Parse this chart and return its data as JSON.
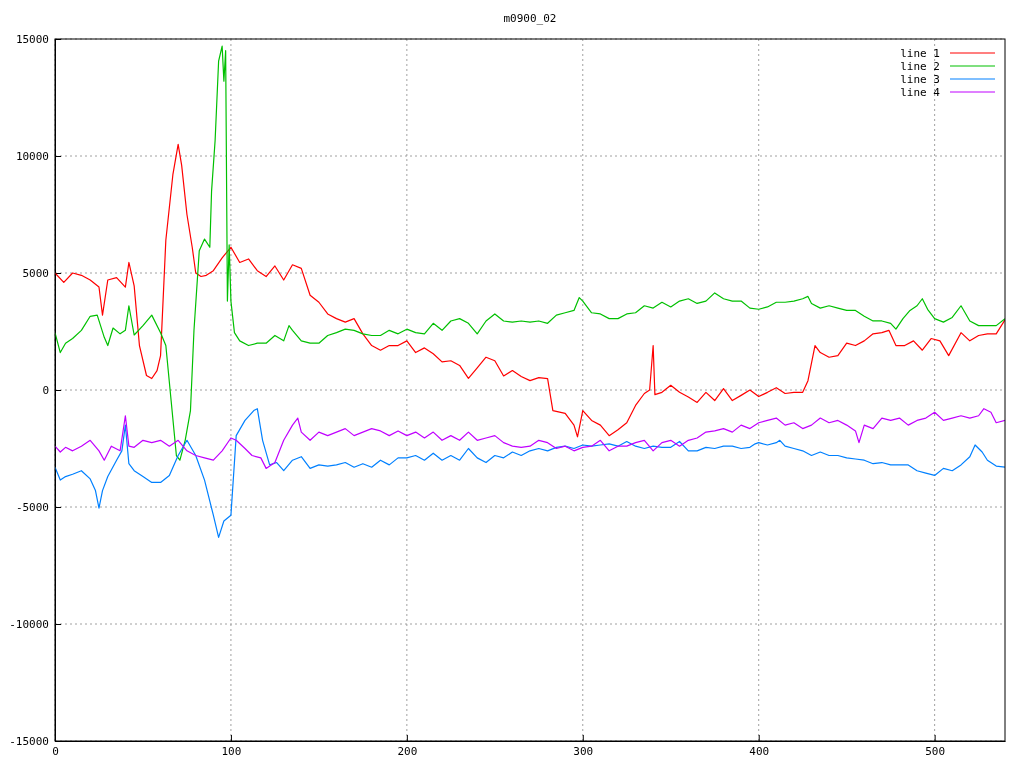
{
  "chart_data": {
    "type": "line",
    "title": "m0900_02",
    "xlim": [
      0,
      540
    ],
    "ylim": [
      -15000,
      15000
    ],
    "xticks": [
      0,
      100,
      200,
      300,
      400,
      500
    ],
    "yticks": [
      -15000,
      -10000,
      -5000,
      0,
      5000,
      10000,
      15000
    ],
    "grid": true,
    "legend": "top right",
    "line_style": "solid",
    "marker": "none",
    "series": [
      {
        "name": "line 1",
        "color": "#ff0000",
        "x": [
          0,
          5,
          10,
          15,
          20,
          25,
          27,
          30,
          35,
          40,
          42,
          45,
          48,
          52,
          55,
          58,
          60,
          63,
          67,
          70,
          72,
          75,
          78,
          80,
          83,
          86,
          90,
          95,
          100,
          105,
          110,
          115,
          120,
          125,
          130,
          135,
          140,
          145,
          150,
          155,
          160,
          165,
          170,
          175,
          180,
          185,
          190,
          195,
          200,
          205,
          210,
          215,
          220,
          225,
          230,
          235,
          240,
          245,
          250,
          255,
          260,
          265,
          270,
          275,
          280,
          283,
          290,
          295,
          297,
          300,
          305,
          310,
          315,
          320,
          325,
          330,
          335,
          338,
          340,
          341,
          345,
          350,
          355,
          360,
          365,
          370,
          375,
          380,
          385,
          390,
          395,
          400,
          405,
          410,
          415,
          420,
          425,
          428,
          432,
          435,
          440,
          445,
          450,
          455,
          460,
          465,
          470,
          474,
          478,
          483,
          488,
          493,
          498,
          503,
          508,
          515,
          520,
          525,
          530,
          535,
          540
        ],
        "values": [
          5000,
          4600,
          5000,
          4900,
          4700,
          4400,
          3200,
          4700,
          4800,
          4400,
          5450,
          4450,
          1900,
          620,
          490,
          830,
          1470,
          6400,
          9200,
          10500,
          9600,
          7500,
          6100,
          5000,
          4850,
          4900,
          5100,
          5650,
          6100,
          5450,
          5600,
          5100,
          4850,
          5300,
          4700,
          5350,
          5200,
          4050,
          3750,
          3250,
          3050,
          2900,
          3050,
          2400,
          1900,
          1700,
          1900,
          1900,
          2100,
          1600,
          1800,
          1550,
          1200,
          1250,
          1050,
          500,
          950,
          1400,
          1250,
          600,
          830,
          580,
          400,
          530,
          490,
          -880,
          -1000,
          -1500,
          -2000,
          -880,
          -1300,
          -1500,
          -1950,
          -1700,
          -1400,
          -660,
          -150,
          0,
          1900,
          -200,
          -100,
          200,
          -100,
          -300,
          -530,
          -100,
          -450,
          60,
          -450,
          -230,
          0,
          -280,
          -100,
          100,
          -150,
          -100,
          -100,
          400,
          1900,
          1600,
          1400,
          1470,
          2000,
          1900,
          2100,
          2400,
          2450,
          2550,
          1900,
          1900,
          2100,
          1700,
          2200,
          2100,
          1470,
          2450,
          2100,
          2330,
          2400,
          2400,
          3000
        ]
      },
      {
        "name": "line 2",
        "color": "#00c000",
        "x": [
          0,
          3,
          6,
          10,
          15,
          20,
          24,
          28,
          30,
          33,
          37,
          40,
          42,
          45,
          50,
          55,
          60,
          63,
          66,
          69,
          71,
          74,
          77,
          79,
          82,
          85,
          88,
          89,
          91,
          93,
          95,
          96,
          97,
          98,
          99,
          100,
          102,
          105,
          110,
          115,
          120,
          125,
          130,
          133,
          135,
          140,
          145,
          150,
          155,
          160,
          165,
          170,
          175,
          180,
          185,
          190,
          195,
          200,
          205,
          210,
          215,
          220,
          225,
          230,
          235,
          240,
          245,
          250,
          255,
          260,
          265,
          270,
          275,
          280,
          285,
          290,
          295,
          298,
          300,
          305,
          310,
          315,
          320,
          325,
          330,
          335,
          340,
          345,
          350,
          355,
          360,
          365,
          370,
          375,
          380,
          385,
          390,
          395,
          400,
          405,
          410,
          415,
          420,
          425,
          428,
          430,
          435,
          440,
          445,
          450,
          455,
          460,
          465,
          470,
          475,
          478,
          482,
          486,
          490,
          493,
          496,
          500,
          505,
          510,
          515,
          520,
          525,
          530,
          535,
          540
        ],
        "values": [
          2450,
          1600,
          2000,
          2200,
          2550,
          3150,
          3200,
          2250,
          1900,
          2650,
          2400,
          2550,
          3600,
          2350,
          2750,
          3200,
          2450,
          1900,
          -450,
          -2800,
          -3000,
          -2150,
          -880,
          2550,
          5950,
          6450,
          6100,
          8500,
          10650,
          14050,
          14700,
          13200,
          14500,
          3800,
          6200,
          3800,
          2450,
          2100,
          1900,
          2000,
          2000,
          2330,
          2100,
          2750,
          2550,
          2100,
          2000,
          2000,
          2330,
          2450,
          2600,
          2550,
          2400,
          2330,
          2330,
          2550,
          2400,
          2600,
          2450,
          2400,
          2850,
          2550,
          2950,
          3050,
          2850,
          2400,
          2950,
          3250,
          2950,
          2900,
          2950,
          2900,
          2950,
          2850,
          3200,
          3300,
          3400,
          3950,
          3800,
          3300,
          3250,
          3050,
          3050,
          3250,
          3300,
          3600,
          3500,
          3750,
          3550,
          3800,
          3900,
          3700,
          3800,
          4150,
          3900,
          3800,
          3800,
          3500,
          3450,
          3550,
          3750,
          3750,
          3800,
          3900,
          4000,
          3700,
          3500,
          3600,
          3500,
          3400,
          3400,
          3150,
          2950,
          2950,
          2850,
          2600,
          3050,
          3400,
          3600,
          3900,
          3450,
          3050,
          2900,
          3100,
          3600,
          2950,
          2750,
          2750,
          2750,
          3050
        ]
      },
      {
        "name": "line 3",
        "color": "#0080ff",
        "x": [
          0,
          3,
          6,
          10,
          15,
          20,
          23,
          25,
          27,
          30,
          35,
          38,
          40,
          42,
          45,
          50,
          55,
          60,
          65,
          70,
          75,
          80,
          85,
          90,
          93,
          96,
          100,
          103,
          108,
          113,
          115,
          118,
          122,
          126,
          130,
          135,
          140,
          145,
          150,
          155,
          160,
          165,
          170,
          175,
          180,
          185,
          190,
          195,
          200,
          205,
          210,
          215,
          220,
          225,
          230,
          235,
          240,
          245,
          250,
          255,
          260,
          265,
          270,
          275,
          280,
          285,
          290,
          295,
          300,
          305,
          310,
          315,
          320,
          325,
          330,
          335,
          340,
          345,
          350,
          355,
          360,
          365,
          370,
          375,
          380,
          385,
          390,
          395,
          398,
          400,
          405,
          410,
          412,
          415,
          420,
          425,
          430,
          435,
          440,
          445,
          450,
          455,
          460,
          465,
          470,
          475,
          480,
          485,
          490,
          495,
          500,
          505,
          510,
          515,
          520,
          523,
          527,
          530,
          535,
          540
        ],
        "values": [
          -3300,
          -3850,
          -3700,
          -3600,
          -3450,
          -3800,
          -4300,
          -5050,
          -4300,
          -3700,
          -3000,
          -2600,
          -1500,
          -3150,
          -3450,
          -3700,
          -3950,
          -3950,
          -3650,
          -2800,
          -2150,
          -2800,
          -3850,
          -5350,
          -6300,
          -5600,
          -5350,
          -1950,
          -1300,
          -880,
          -800,
          -2150,
          -3200,
          -3100,
          -3450,
          -3000,
          -2850,
          -3350,
          -3200,
          -3250,
          -3200,
          -3100,
          -3300,
          -3150,
          -3300,
          -3000,
          -3200,
          -2900,
          -2900,
          -2800,
          -3000,
          -2700,
          -3000,
          -2800,
          -3000,
          -2500,
          -2900,
          -3100,
          -2800,
          -2900,
          -2650,
          -2800,
          -2600,
          -2500,
          -2600,
          -2450,
          -2400,
          -2500,
          -2350,
          -2400,
          -2350,
          -2300,
          -2400,
          -2200,
          -2400,
          -2500,
          -2400,
          -2450,
          -2450,
          -2200,
          -2600,
          -2600,
          -2450,
          -2500,
          -2400,
          -2400,
          -2500,
          -2450,
          -2300,
          -2250,
          -2350,
          -2250,
          -2150,
          -2400,
          -2500,
          -2600,
          -2800,
          -2650,
          -2800,
          -2800,
          -2900,
          -2950,
          -3000,
          -3150,
          -3100,
          -3200,
          -3200,
          -3200,
          -3450,
          -3550,
          -3650,
          -3350,
          -3450,
          -3200,
          -2850,
          -2350,
          -2650,
          -3000,
          -3250,
          -3300
        ]
      },
      {
        "name": "line 4",
        "color": "#c000ff",
        "x": [
          0,
          3,
          6,
          10,
          15,
          20,
          25,
          28,
          32,
          37,
          40,
          42,
          45,
          50,
          55,
          60,
          65,
          70,
          75,
          80,
          85,
          90,
          95,
          100,
          103,
          108,
          112,
          117,
          120,
          125,
          130,
          135,
          138,
          140,
          145,
          150,
          155,
          160,
          165,
          170,
          175,
          180,
          185,
          190,
          195,
          200,
          205,
          210,
          215,
          220,
          225,
          230,
          235,
          240,
          245,
          250,
          255,
          260,
          265,
          270,
          275,
          280,
          285,
          290,
          295,
          300,
          305,
          310,
          315,
          320,
          325,
          330,
          335,
          340,
          345,
          350,
          355,
          360,
          365,
          370,
          375,
          380,
          385,
          390,
          395,
          400,
          405,
          410,
          415,
          420,
          425,
          430,
          435,
          440,
          445,
          450,
          455,
          457,
          460,
          465,
          470,
          475,
          480,
          485,
          490,
          495,
          500,
          505,
          510,
          515,
          520,
          525,
          528,
          532,
          535,
          540
        ],
        "values": [
          -2400,
          -2650,
          -2450,
          -2600,
          -2400,
          -2150,
          -2600,
          -3000,
          -2400,
          -2600,
          -1100,
          -2400,
          -2450,
          -2150,
          -2250,
          -2150,
          -2400,
          -2150,
          -2600,
          -2800,
          -2900,
          -3000,
          -2600,
          -2050,
          -2150,
          -2500,
          -2800,
          -2900,
          -3350,
          -3100,
          -2150,
          -1500,
          -1200,
          -1800,
          -2150,
          -1800,
          -1950,
          -1800,
          -1650,
          -1950,
          -1800,
          -1650,
          -1750,
          -1950,
          -1750,
          -1950,
          -1800,
          -2050,
          -1800,
          -2150,
          -1950,
          -2150,
          -1800,
          -2150,
          -2050,
          -1950,
          -2250,
          -2400,
          -2450,
          -2400,
          -2150,
          -2250,
          -2500,
          -2400,
          -2600,
          -2450,
          -2400,
          -2150,
          -2600,
          -2400,
          -2400,
          -2250,
          -2150,
          -2600,
          -2250,
          -2150,
          -2400,
          -2150,
          -2050,
          -1800,
          -1750,
          -1650,
          -1800,
          -1500,
          -1650,
          -1400,
          -1300,
          -1200,
          -1500,
          -1400,
          -1650,
          -1500,
          -1200,
          -1400,
          -1300,
          -1500,
          -1750,
          -2250,
          -1500,
          -1650,
          -1200,
          -1300,
          -1200,
          -1500,
          -1300,
          -1200,
          -950,
          -1300,
          -1200,
          -1100,
          -1200,
          -1100,
          -800,
          -950,
          -1400,
          -1300
        ]
      }
    ]
  }
}
